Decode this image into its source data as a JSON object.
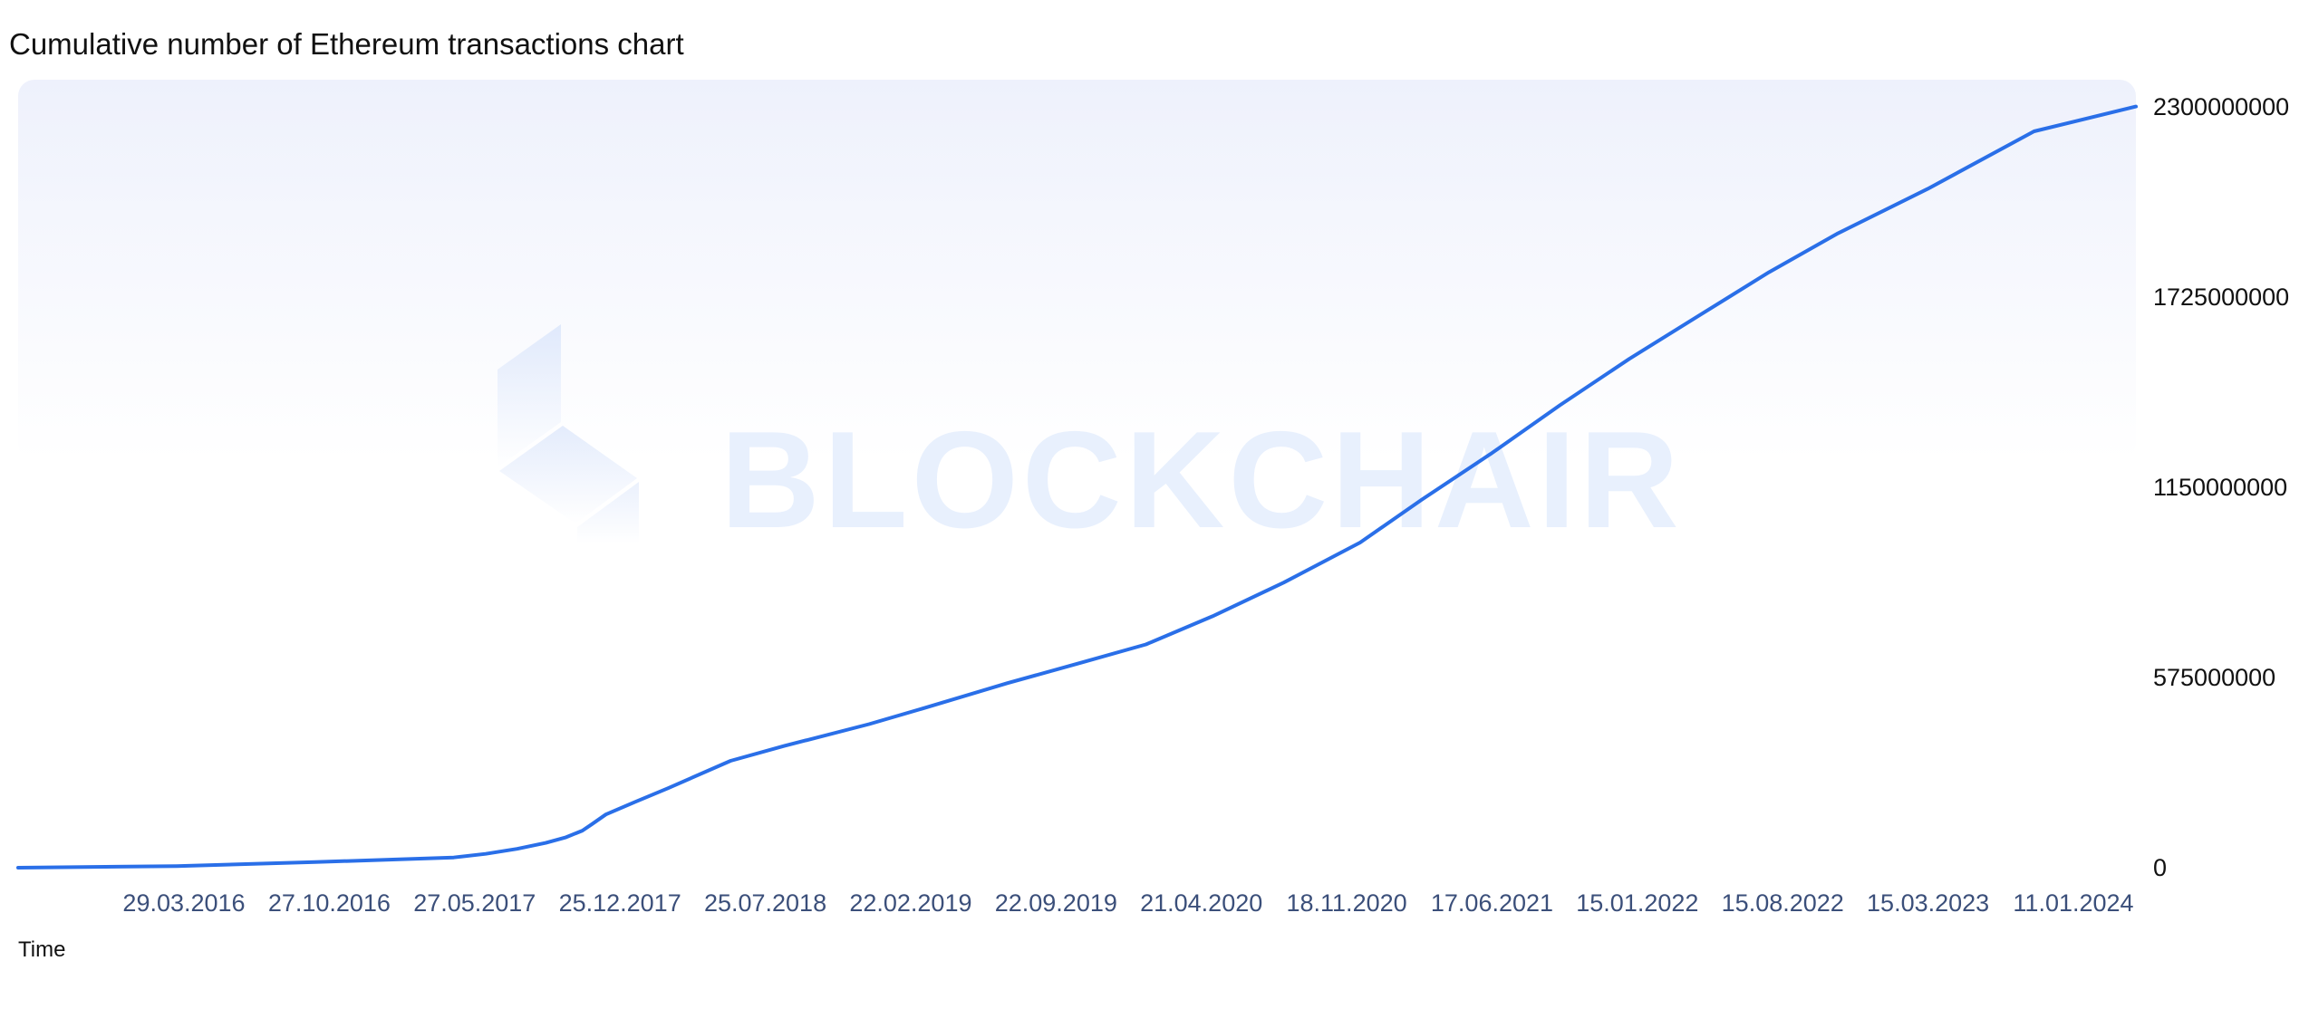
{
  "chart_data": {
    "type": "area",
    "title": "Cumulative number of Ethereum transactions chart",
    "xlabel": "Time",
    "ylabel": "",
    "watermark": "BLOCKCHAIR",
    "x_tick_labels": [
      "29.03.2016",
      "27.10.2016",
      "27.05.2017",
      "25.12.2017",
      "25.07.2018",
      "22.02.2019",
      "22.09.2019",
      "21.04.2020",
      "18.11.2020",
      "17.06.2021",
      "15.01.2022",
      "15.08.2022",
      "15.03.2023",
      "11.01.2024"
    ],
    "y_tick_labels": [
      "0",
      "575000000",
      "1150000000",
      "1725000000",
      "2300000000"
    ],
    "y_ticks": [
      0,
      575000000,
      1150000000,
      1725000000,
      2300000000
    ],
    "ylim": [
      0,
      2300000000
    ],
    "xlim": [
      "2015-07-30",
      "2024-06-15"
    ],
    "series": [
      {
        "color": "#2a6fe8",
        "x": [
          "2015-07-30",
          "2016-03-29",
          "2016-10-27",
          "2017-05-27",
          "2017-07-15",
          "2017-09-01",
          "2017-10-15",
          "2017-11-15",
          "2017-12-10",
          "2017-12-25",
          "2018-01-15",
          "2018-03-01",
          "2018-04-20",
          "2018-07-25",
          "2018-10-15",
          "2019-02-22",
          "2019-05-20",
          "2019-09-22",
          "2020-01-15",
          "2020-04-21",
          "2020-08-01",
          "2020-11-18",
          "2021-03-15",
          "2021-06-17",
          "2021-10-01",
          "2022-01-15",
          "2022-05-01",
          "2022-08-15",
          "2022-12-01",
          "2023-03-15",
          "2023-08-01",
          "2024-01-11",
          "2024-06-15"
        ],
        "values": [
          0,
          5000000,
          17000000,
          31000000,
          42000000,
          57000000,
          75000000,
          92000000,
          112000000,
          132000000,
          161000000,
          199000000,
          240000000,
          323000000,
          368000000,
          434000000,
          484000000,
          558000000,
          621000000,
          675000000,
          760000000,
          862000000,
          983000000,
          1112000000,
          1251000000,
          1398000000,
          1538000000,
          1668000000,
          1800000000,
          1916000000,
          2052000000,
          2226000000,
          2301000000
        ]
      }
    ]
  }
}
